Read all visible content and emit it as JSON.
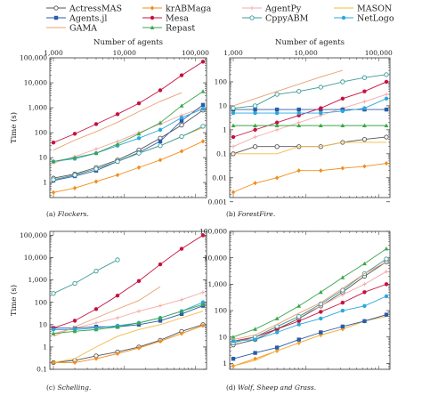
{
  "legend": [
    {
      "name": "ActressMAS",
      "color": "#555555",
      "marker": "circle-open"
    },
    {
      "name": "krABMaga",
      "color": "#f28e1c",
      "marker": "diamond"
    },
    {
      "name": "AgentPy",
      "color": "#f4a9a8",
      "marker": "plus"
    },
    {
      "name": "MASON",
      "color": "#f4b942",
      "marker": "line"
    },
    {
      "name": "Agents.jl",
      "color": "#2a5caa",
      "marker": "square"
    },
    {
      "name": "Mesa",
      "color": "#c8103e",
      "marker": "circle"
    },
    {
      "name": "CppyABM",
      "color": "#3c9a9a",
      "marker": "circle-open"
    },
    {
      "name": "NetLogo",
      "color": "#2aa8dc",
      "marker": "circle"
    },
    {
      "name": "GAMA",
      "color": "#e8a070",
      "marker": "line"
    },
    {
      "name": "Repast",
      "color": "#3aa648",
      "marker": "triangle"
    }
  ],
  "chart_data": [
    {
      "type": "line",
      "panel": "a",
      "caption_prefix": "(a) ",
      "caption_title": "Flockers.",
      "top_axis_label": "Number of agents",
      "ylabel": "Time (s)",
      "xscale": "log",
      "yscale": "log",
      "xlim": [
        1000,
        128000
      ],
      "ylim": [
        0.25,
        100000
      ],
      "xticks": [
        {
          "v": 1000,
          "label": "1,000"
        },
        {
          "v": 10000,
          "label": "10,000"
        },
        {
          "v": 100000,
          "label": "100,000"
        }
      ],
      "yticks": [
        {
          "v": 1,
          "label": "1"
        },
        {
          "v": 10,
          "label": "10"
        },
        {
          "v": 100,
          "label": "100"
        },
        {
          "v": 1000,
          "label": "1,000"
        },
        {
          "v": 10000,
          "label": "10,000"
        },
        {
          "v": 100000,
          "label": "100,000"
        }
      ],
      "x": [
        1000,
        2000,
        4000,
        8000,
        16000,
        32000,
        64000,
        128000
      ],
      "series": [
        {
          "name": "ActressMAS",
          "values": [
            1.5,
            2.2,
            4,
            8,
            20,
            60,
            200,
            800
          ]
        },
        {
          "name": "krABMaga",
          "values": [
            0.4,
            0.6,
            1.1,
            2,
            4,
            8,
            18,
            45
          ]
        },
        {
          "name": "AgentPy",
          "values": [
            6,
            11,
            22,
            45,
            100,
            220,
            500,
            1000
          ]
        },
        {
          "name": "MASON",
          "values": [
            1.3,
            2,
            3.5,
            7,
            15,
            30,
            70,
            160
          ]
        },
        {
          "name": "Agents.jl",
          "values": [
            1.2,
            1.8,
            3,
            7,
            16,
            45,
            300,
            1300
          ]
        },
        {
          "name": "Mesa",
          "values": [
            40,
            90,
            220,
            550,
            1500,
            5000,
            20000,
            70000
          ]
        },
        {
          "name": "CppyABM",
          "values": [
            1.3,
            2,
            3.5,
            7,
            15,
            30,
            70,
            180
          ]
        },
        {
          "name": "NetLogo",
          "values": [
            7,
            9,
            15,
            30,
            60,
            130,
            400,
            900
          ]
        },
        {
          "name": "GAMA",
          "values": [
            20,
            50,
            110,
            260,
            700,
            1800,
            4000,
            null
          ]
        },
        {
          "name": "Repast",
          "values": [
            7,
            10,
            15,
            35,
            90,
            250,
            1200,
            4500
          ]
        }
      ]
    },
    {
      "type": "line",
      "panel": "b",
      "caption_prefix": "(b) ",
      "caption_title": "ForestFire.",
      "top_axis_label": "Number of agents",
      "ylabel": "",
      "xscale": "log",
      "yscale": "log",
      "xlim": [
        1000,
        128000
      ],
      "ylim": [
        0.0015,
        1000
      ],
      "xticks": [
        {
          "v": 1000,
          "label": "1,000"
        },
        {
          "v": 10000,
          "label": "10,000"
        },
        {
          "v": 100000,
          "label": "100,000"
        }
      ],
      "yticks": [
        {
          "v": 0.001,
          "label": "0.001"
        },
        {
          "v": 0.01,
          "label": "0.01"
        },
        {
          "v": 0.1,
          "label": "0.1"
        },
        {
          "v": 1,
          "label": "1"
        },
        {
          "v": 10,
          "label": "10"
        },
        {
          "v": 100,
          "label": "100"
        }
      ],
      "x": [
        1000,
        2000,
        4000,
        8000,
        16000,
        32000,
        64000,
        128000
      ],
      "series": [
        {
          "name": "ActressMAS",
          "values": [
            0.1,
            0.2,
            0.2,
            0.2,
            0.2,
            0.3,
            0.4,
            0.5
          ]
        },
        {
          "name": "krABMaga",
          "values": [
            0.0025,
            0.006,
            0.01,
            0.02,
            0.02,
            0.025,
            0.03,
            0.04
          ]
        },
        {
          "name": "AgentPy",
          "values": [
            0.2,
            0.5,
            1,
            2,
            4,
            8,
            15,
            30
          ]
        },
        {
          "name": "MASON",
          "values": [
            0.1,
            0.1,
            0.1,
            0.2,
            0.2,
            0.3,
            0.3,
            0.3
          ]
        },
        {
          "name": "Agents.jl",
          "values": [
            7,
            7,
            7,
            7,
            7,
            7,
            7,
            7
          ]
        },
        {
          "name": "Mesa",
          "values": [
            0.5,
            1,
            2,
            4,
            8,
            20,
            40,
            100
          ]
        },
        {
          "name": "CppyABM",
          "values": [
            8,
            10,
            30,
            40,
            60,
            100,
            150,
            200
          ]
        },
        {
          "name": "NetLogo",
          "values": [
            5,
            5,
            5,
            5,
            5,
            6,
            8,
            20
          ]
        },
        {
          "name": "GAMA",
          "values": [
            10,
            20,
            40,
            80,
            160,
            300,
            null,
            null
          ]
        },
        {
          "name": "Repast",
          "values": [
            1.5,
            1.5,
            1.5,
            1.5,
            1.5,
            1.5,
            1.5,
            1.5
          ]
        }
      ]
    },
    {
      "type": "line",
      "panel": "c",
      "caption_prefix": "(c) ",
      "caption_title": "Schelling.",
      "top_axis_label": "",
      "ylabel": "Time (s)",
      "xscale": "log",
      "yscale": "log",
      "xlim": [
        1000,
        128000
      ],
      "ylim": [
        0.1,
        150000
      ],
      "xticks": [],
      "yticks": [
        {
          "v": 0.1,
          "label": "0.1"
        },
        {
          "v": 1,
          "label": "1"
        },
        {
          "v": 10,
          "label": "10"
        },
        {
          "v": 100,
          "label": "100"
        },
        {
          "v": 1000,
          "label": "1,000"
        },
        {
          "v": 10000,
          "label": "10,000"
        },
        {
          "v": 100000,
          "label": "100,000"
        }
      ],
      "x": [
        1000,
        2000,
        4000,
        8000,
        16000,
        32000,
        64000,
        128000
      ],
      "series": [
        {
          "name": "ActressMAS",
          "values": [
            0.2,
            0.25,
            0.4,
            0.6,
            1,
            2,
            5,
            10
          ]
        },
        {
          "name": "krABMaga",
          "values": [
            0.2,
            0.2,
            0.3,
            0.5,
            0.9,
            1.8,
            4,
            9
          ]
        },
        {
          "name": "AgentPy",
          "values": [
            4,
            7,
            12,
            20,
            40,
            70,
            130,
            280
          ]
        },
        {
          "name": "MASON",
          "values": [
            0.2,
            0.3,
            1,
            3,
            6,
            10,
            20,
            40
          ]
        },
        {
          "name": "Agents.jl",
          "values": [
            7,
            7,
            8,
            8,
            10,
            15,
            30,
            70
          ]
        },
        {
          "name": "Mesa",
          "values": [
            7,
            15,
            50,
            200,
            900,
            5000,
            25000,
            100000
          ]
        },
        {
          "name": "CppyABM",
          "values": [
            250,
            700,
            2500,
            8000,
            null,
            null,
            null,
            null
          ]
        },
        {
          "name": "NetLogo",
          "values": [
            6,
            6,
            7,
            9,
            12,
            20,
            40,
            100
          ]
        },
        {
          "name": "GAMA",
          "values": [
            3,
            8,
            20,
            50,
            120,
            500,
            null,
            null
          ]
        },
        {
          "name": "Repast",
          "values": [
            4,
            5,
            6,
            8,
            12,
            20,
            40,
            80
          ]
        }
      ]
    },
    {
      "type": "line",
      "panel": "d",
      "caption_prefix": "(d) ",
      "caption_title": "Wolf, Sheep and Grass.",
      "top_axis_label": "",
      "ylabel": "",
      "xscale": "log",
      "yscale": "log",
      "xlim": [
        1000,
        128000
      ],
      "ylim": [
        0.6,
        100000
      ],
      "xticks": [],
      "yticks": [
        {
          "v": 1,
          "label": "1"
        },
        {
          "v": 10,
          "label": "10"
        },
        {
          "v": 100,
          "label": "100"
        },
        {
          "v": 1000,
          "label": "1,000"
        },
        {
          "v": 10000,
          "label": "10,000"
        },
        {
          "v": 100000,
          "label": "100,000"
        }
      ],
      "x": [
        1000,
        2000,
        4000,
        8000,
        16000,
        32000,
        64000,
        128000
      ],
      "series": [
        {
          "name": "ActressMAS",
          "values": [
            5,
            8,
            20,
            50,
            150,
            500,
            2000,
            7000
          ]
        },
        {
          "name": "krABMaga",
          "values": [
            0.8,
            1.5,
            3,
            6,
            12,
            20,
            40,
            70
          ]
        },
        {
          "name": "AgentPy",
          "values": [
            6,
            10,
            25,
            60,
            150,
            400,
            1000,
            3000
          ]
        },
        {
          "name": "MASON",
          "values": [
            0.8,
            1.3,
            3,
            6,
            12,
            20,
            40,
            60
          ]
        },
        {
          "name": "Agents.jl",
          "values": [
            1.5,
            2.5,
            4,
            8,
            15,
            25,
            40,
            70
          ]
        },
        {
          "name": "Mesa",
          "values": [
            7,
            10,
            20,
            40,
            90,
            200,
            500,
            1000
          ]
        },
        {
          "name": "CppyABM",
          "values": [
            6,
            10,
            25,
            60,
            180,
            600,
            2500,
            9000
          ]
        },
        {
          "name": "NetLogo",
          "values": [
            7,
            8,
            15,
            30,
            50,
            100,
            150,
            350
          ]
        },
        {
          "name": "GAMA",
          "values": [
            8,
            12,
            30,
            80,
            200,
            700,
            2500,
            7000
          ]
        },
        {
          "name": "Repast",
          "values": [
            10,
            20,
            50,
            150,
            500,
            1800,
            6000,
            22000
          ]
        }
      ]
    }
  ]
}
